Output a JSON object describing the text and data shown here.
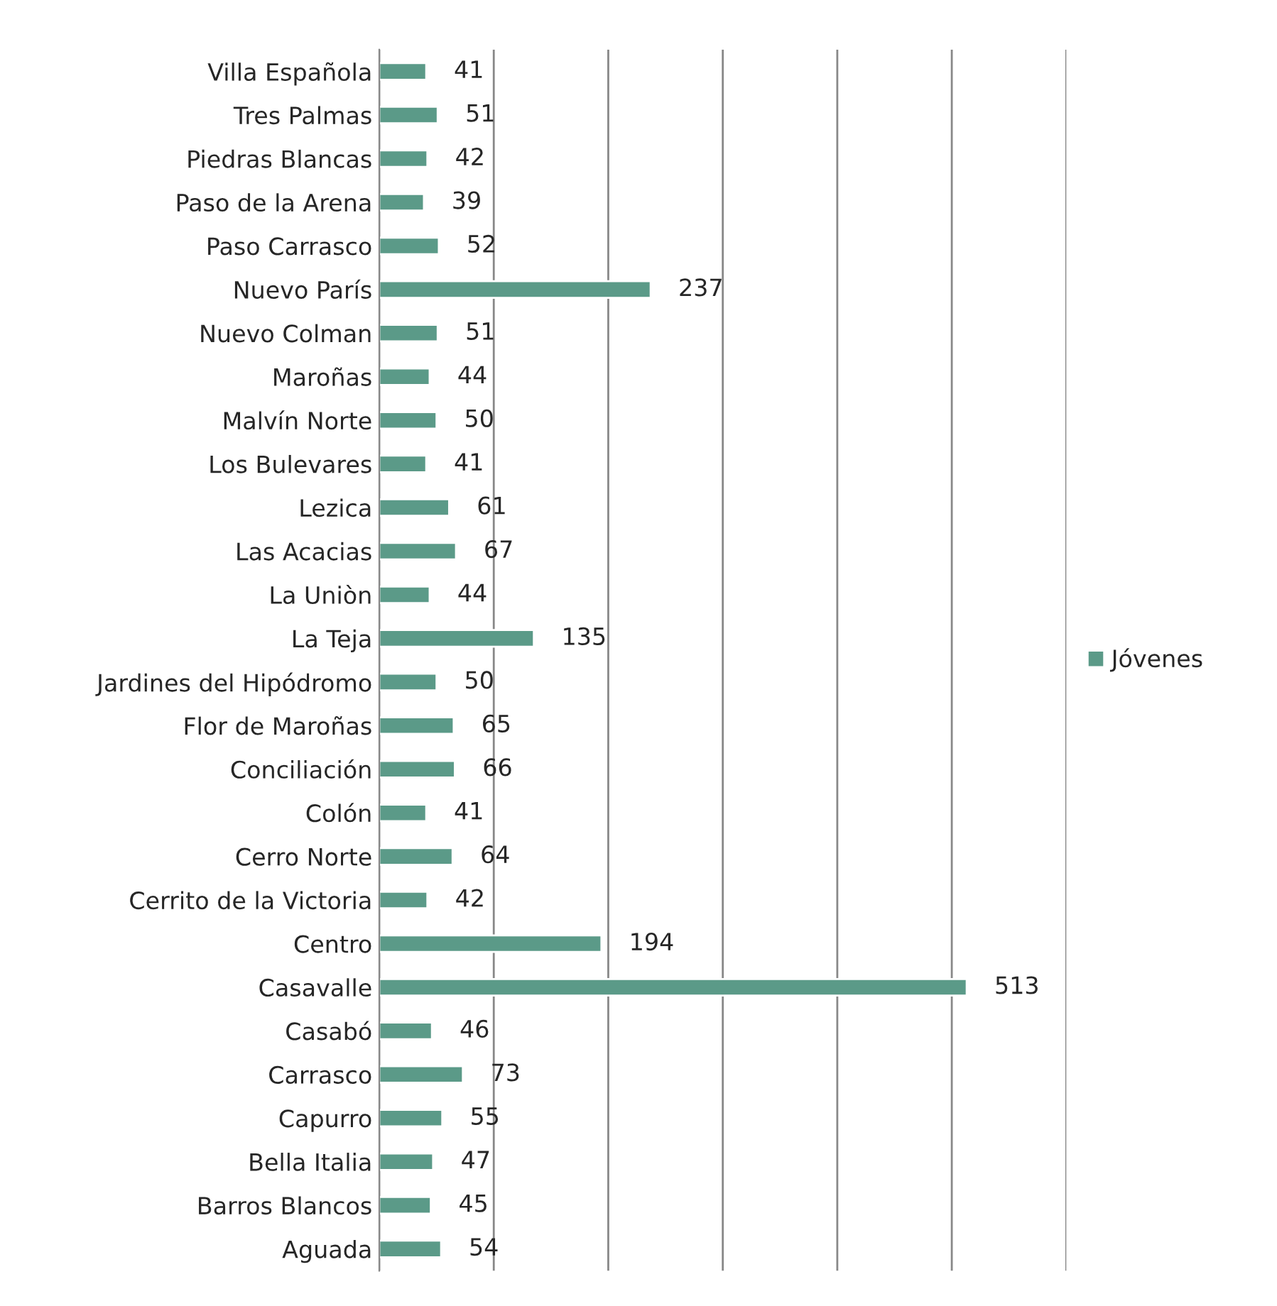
{
  "chart_data": {
    "type": "bar",
    "orientation": "horizontal",
    "categories": [
      "Villa Española",
      "Tres Palmas",
      "Piedras Blancas",
      "Paso de la Arena",
      "Paso Carrasco",
      "Nuevo París",
      "Nuevo Colman",
      "Maroñas",
      "Malvín Norte",
      "Los Bulevares",
      "Lezica",
      "Las Acacias",
      "La Uniòn",
      "La Teja",
      "Jardines del Hipódromo",
      "Flor de Maroñas",
      "Conciliación",
      "Colón",
      "Cerro Norte",
      "Cerrito de la Victoria",
      "Centro",
      "Casavalle",
      "Casabó",
      "Carrasco",
      "Capurro",
      "Bella Italia",
      "Barros Blancos",
      "Aguada"
    ],
    "series": [
      {
        "name": "Jóvenes",
        "color": "#5b9a88",
        "values": [
          41,
          51,
          42,
          39,
          52,
          237,
          51,
          44,
          50,
          41,
          61,
          67,
          44,
          135,
          50,
          65,
          66,
          41,
          64,
          42,
          194,
          513,
          46,
          73,
          55,
          47,
          45,
          54
        ]
      }
    ],
    "xlim": [
      0,
      600
    ],
    "xticks": [
      {
        "value": 0,
        "label": null
      },
      {
        "value": 100,
        "label": null
      },
      {
        "value": 200,
        "label": null
      },
      {
        "value": 300,
        "label": null
      },
      {
        "value": 400,
        "label": null
      },
      {
        "value": 500,
        "label": null
      },
      {
        "value": 600,
        "label": null
      }
    ],
    "tick_labels": "y",
    "grid": "x",
    "legend": "right",
    "data_labels": true
  }
}
